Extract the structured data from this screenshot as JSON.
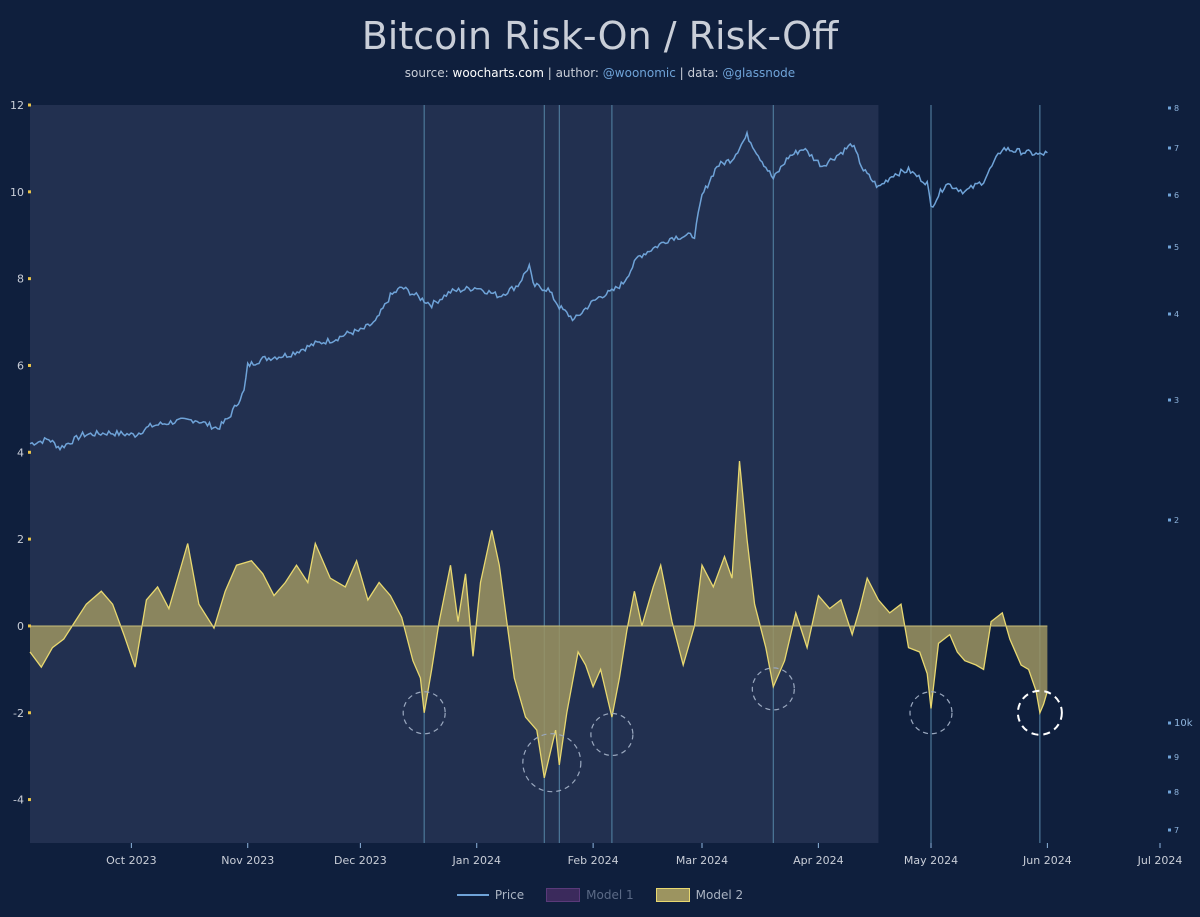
{
  "title": "Bitcoin Risk-On / Risk-Off",
  "subtitle": {
    "source_label": "source: ",
    "source": "woocharts.com",
    "author_label": " | author: ",
    "author": "@woonomic",
    "data_label": " | data: ",
    "data": "@glassnode"
  },
  "colors": {
    "background": "#0f1f3d",
    "shaded_region": "#223050",
    "price": "#6fa3d8",
    "model2_fill": "#9c9460",
    "model2_line": "#e8d870",
    "model1": "#5a3a7a",
    "axis_left": "#e8c34a",
    "axis_right": "#6fa3d8",
    "vlines": "#4d7899"
  },
  "chart_data": {
    "type": "line",
    "x_axis": {
      "ticks": [
        "Oct 2023",
        "Nov 2023",
        "Dec 2023",
        "Jan 2024",
        "Feb 2024",
        "Mar 2024",
        "Apr 2024",
        "May 2024",
        "Jun 2024",
        "Jul 2024"
      ],
      "range": [
        "2023-09-04",
        "2024-07-01"
      ]
    },
    "y_left": {
      "ticks": [
        "12",
        "10",
        "8",
        "6",
        "4",
        "2",
        "0",
        "-2",
        "-4"
      ],
      "range": [
        -5,
        12
      ]
    },
    "y_right": {
      "ticks": [
        "8",
        "7",
        "6",
        "5",
        "4",
        "3",
        "2",
        "10k",
        "9",
        "8",
        "7"
      ],
      "scale": "log"
    },
    "shaded_region": {
      "start": "2023-09-04",
      "end": "2024-04-17"
    },
    "vertical_lines": [
      "2023-12-18",
      "2024-01-19",
      "2024-01-23",
      "2024-02-06",
      "2024-03-20",
      "2024-05-01",
      "2024-05-30"
    ],
    "circles": [
      {
        "x": "2023-12-18",
        "y": -2.0
      },
      {
        "x": "2024-01-21",
        "y": -3.15
      },
      {
        "x": "2024-02-06",
        "y": -2.5
      },
      {
        "x": "2024-03-20",
        "y": -1.45
      },
      {
        "x": "2024-05-01",
        "y": -2.0
      },
      {
        "x": "2024-05-30",
        "y": -2.0,
        "highlight": true
      }
    ],
    "series": [
      {
        "name": "Price",
        "type": "line",
        "points": [
          [
            "2023-09-04",
            4.2
          ],
          [
            "2023-09-09",
            4.3
          ],
          [
            "2023-09-12",
            4.1
          ],
          [
            "2023-09-18",
            4.4
          ],
          [
            "2023-09-25",
            4.45
          ],
          [
            "2023-10-02",
            4.4
          ],
          [
            "2023-10-06",
            4.6
          ],
          [
            "2023-10-12",
            4.7
          ],
          [
            "2023-10-18",
            4.75
          ],
          [
            "2023-10-24",
            4.55
          ],
          [
            "2023-10-27",
            4.8
          ],
          [
            "2023-10-31",
            5.4
          ],
          [
            "2023-11-01",
            6.0
          ],
          [
            "2023-11-05",
            6.15
          ],
          [
            "2023-11-12",
            6.25
          ],
          [
            "2023-11-19",
            6.5
          ],
          [
            "2023-11-24",
            6.6
          ],
          [
            "2023-11-28",
            6.75
          ],
          [
            "2023-12-01",
            6.8
          ],
          [
            "2023-12-05",
            7.0
          ],
          [
            "2023-12-09",
            7.6
          ],
          [
            "2023-12-12",
            7.8
          ],
          [
            "2023-12-17",
            7.55
          ],
          [
            "2023-12-20",
            7.4
          ],
          [
            "2023-12-25",
            7.7
          ],
          [
            "2024-01-01",
            7.8
          ],
          [
            "2024-01-07",
            7.6
          ],
          [
            "2024-01-12",
            7.85
          ],
          [
            "2024-01-15",
            8.3
          ],
          [
            "2024-01-16",
            7.85
          ],
          [
            "2024-01-20",
            7.75
          ],
          [
            "2024-01-23",
            7.35
          ],
          [
            "2024-01-27",
            7.05
          ],
          [
            "2024-01-31",
            7.4
          ],
          [
            "2024-02-03",
            7.6
          ],
          [
            "2024-02-06",
            7.7
          ],
          [
            "2024-02-09",
            7.9
          ],
          [
            "2024-02-13",
            8.5
          ],
          [
            "2024-02-17",
            8.7
          ],
          [
            "2024-02-22",
            8.95
          ],
          [
            "2024-02-28",
            9.0
          ],
          [
            "2024-03-01",
            9.9
          ],
          [
            "2024-03-05",
            10.6
          ],
          [
            "2024-03-09",
            10.75
          ],
          [
            "2024-03-13",
            11.3
          ],
          [
            "2024-03-16",
            10.85
          ],
          [
            "2024-03-20",
            10.3
          ],
          [
            "2024-03-24",
            10.8
          ],
          [
            "2024-03-28",
            11.0
          ],
          [
            "2024-04-02",
            10.6
          ],
          [
            "2024-04-07",
            10.9
          ],
          [
            "2024-04-10",
            11.1
          ],
          [
            "2024-04-13",
            10.5
          ],
          [
            "2024-04-17",
            10.1
          ],
          [
            "2024-04-21",
            10.4
          ],
          [
            "2024-04-25",
            10.5
          ],
          [
            "2024-04-30",
            10.2
          ],
          [
            "2024-05-01",
            9.65
          ],
          [
            "2024-05-05",
            10.2
          ],
          [
            "2024-05-10",
            10.0
          ],
          [
            "2024-05-15",
            10.25
          ],
          [
            "2024-05-20",
            11.0
          ],
          [
            "2024-05-23",
            10.95
          ],
          [
            "2024-05-27",
            10.9
          ],
          [
            "2024-05-30",
            10.85
          ],
          [
            "2024-06-01",
            10.9
          ]
        ]
      },
      {
        "name": "Model 1",
        "type": "area",
        "points": []
      },
      {
        "name": "Model 2",
        "type": "area",
        "points": [
          [
            "2023-09-04",
            -0.6
          ],
          [
            "2023-09-07",
            -0.95
          ],
          [
            "2023-09-10",
            -0.5
          ],
          [
            "2023-09-13",
            -0.3
          ],
          [
            "2023-09-16",
            0.1
          ],
          [
            "2023-09-19",
            0.5
          ],
          [
            "2023-09-23",
            0.8
          ],
          [
            "2023-09-26",
            0.5
          ],
          [
            "2023-09-29",
            -0.2
          ],
          [
            "2023-10-02",
            -0.95
          ],
          [
            "2023-10-05",
            0.6
          ],
          [
            "2023-10-08",
            0.9
          ],
          [
            "2023-10-11",
            0.4
          ],
          [
            "2023-10-14",
            1.3
          ],
          [
            "2023-10-16",
            1.9
          ],
          [
            "2023-10-19",
            0.5
          ],
          [
            "2023-10-23",
            -0.05
          ],
          [
            "2023-10-26",
            0.8
          ],
          [
            "2023-10-29",
            1.4
          ],
          [
            "2023-11-02",
            1.5
          ],
          [
            "2023-11-05",
            1.2
          ],
          [
            "2023-11-08",
            0.7
          ],
          [
            "2023-11-11",
            1.0
          ],
          [
            "2023-11-14",
            1.4
          ],
          [
            "2023-11-17",
            1.0
          ],
          [
            "2023-11-19",
            1.9
          ],
          [
            "2023-11-23",
            1.1
          ],
          [
            "2023-11-27",
            0.9
          ],
          [
            "2023-11-30",
            1.5
          ],
          [
            "2023-12-03",
            0.6
          ],
          [
            "2023-12-06",
            1.0
          ],
          [
            "2023-12-09",
            0.7
          ],
          [
            "2023-12-12",
            0.2
          ],
          [
            "2023-12-15",
            -0.8
          ],
          [
            "2023-12-17",
            -1.2
          ],
          [
            "2023-12-18",
            -2.0
          ],
          [
            "2023-12-20",
            -1.0
          ],
          [
            "2023-12-22",
            0.1
          ],
          [
            "2023-12-25",
            1.4
          ],
          [
            "2023-12-27",
            0.1
          ],
          [
            "2023-12-29",
            1.2
          ],
          [
            "2023-12-31",
            -0.7
          ],
          [
            "2024-01-02",
            1.0
          ],
          [
            "2024-01-05",
            2.2
          ],
          [
            "2024-01-07",
            1.4
          ],
          [
            "2024-01-09",
            0.1
          ],
          [
            "2024-01-11",
            -1.2
          ],
          [
            "2024-01-14",
            -2.1
          ],
          [
            "2024-01-17",
            -2.4
          ],
          [
            "2024-01-19",
            -3.5
          ],
          [
            "2024-01-22",
            -2.4
          ],
          [
            "2024-01-23",
            -3.2
          ],
          [
            "2024-01-25",
            -2.0
          ],
          [
            "2024-01-28",
            -0.6
          ],
          [
            "2024-01-30",
            -0.9
          ],
          [
            "2024-02-01",
            -1.4
          ],
          [
            "2024-02-03",
            -1.0
          ],
          [
            "2024-02-06",
            -2.1
          ],
          [
            "2024-02-08",
            -1.2
          ],
          [
            "2024-02-10",
            -0.1
          ],
          [
            "2024-02-12",
            0.8
          ],
          [
            "2024-02-14",
            0.0
          ],
          [
            "2024-02-17",
            0.9
          ],
          [
            "2024-02-19",
            1.4
          ],
          [
            "2024-02-22",
            0.1
          ],
          [
            "2024-02-25",
            -0.9
          ],
          [
            "2024-02-28",
            0.0
          ],
          [
            "2024-03-01",
            1.4
          ],
          [
            "2024-03-04",
            0.9
          ],
          [
            "2024-03-07",
            1.6
          ],
          [
            "2024-03-09",
            1.1
          ],
          [
            "2024-03-11",
            3.8
          ],
          [
            "2024-03-13",
            2.0
          ],
          [
            "2024-03-15",
            0.5
          ],
          [
            "2024-03-18",
            -0.5
          ],
          [
            "2024-03-20",
            -1.4
          ],
          [
            "2024-03-23",
            -0.8
          ],
          [
            "2024-03-26",
            0.3
          ],
          [
            "2024-03-29",
            -0.5
          ],
          [
            "2024-04-01",
            0.7
          ],
          [
            "2024-04-04",
            0.4
          ],
          [
            "2024-04-07",
            0.6
          ],
          [
            "2024-04-10",
            -0.2
          ],
          [
            "2024-04-12",
            0.4
          ],
          [
            "2024-04-14",
            1.1
          ],
          [
            "2024-04-17",
            0.6
          ],
          [
            "2024-04-20",
            0.3
          ],
          [
            "2024-04-23",
            0.5
          ],
          [
            "2024-04-25",
            -0.5
          ],
          [
            "2024-04-28",
            -0.6
          ],
          [
            "2024-04-30",
            -1.1
          ],
          [
            "2024-05-01",
            -1.9
          ],
          [
            "2024-05-03",
            -0.4
          ],
          [
            "2024-05-06",
            -0.2
          ],
          [
            "2024-05-08",
            -0.6
          ],
          [
            "2024-05-10",
            -0.8
          ],
          [
            "2024-05-13",
            -0.9
          ],
          [
            "2024-05-15",
            -1.0
          ],
          [
            "2024-05-17",
            0.1
          ],
          [
            "2024-05-20",
            0.3
          ],
          [
            "2024-05-22",
            -0.3
          ],
          [
            "2024-05-25",
            -0.9
          ],
          [
            "2024-05-27",
            -1.0
          ],
          [
            "2024-05-29",
            -1.5
          ],
          [
            "2024-05-30",
            -2.0
          ],
          [
            "2024-05-31",
            -1.8
          ],
          [
            "2024-06-01",
            -1.5
          ]
        ]
      }
    ],
    "legend": {
      "placement": "bottom-center",
      "entries": [
        "Price",
        "Model 1",
        "Model 2"
      ],
      "inactive": [
        "Model 1"
      ]
    }
  }
}
